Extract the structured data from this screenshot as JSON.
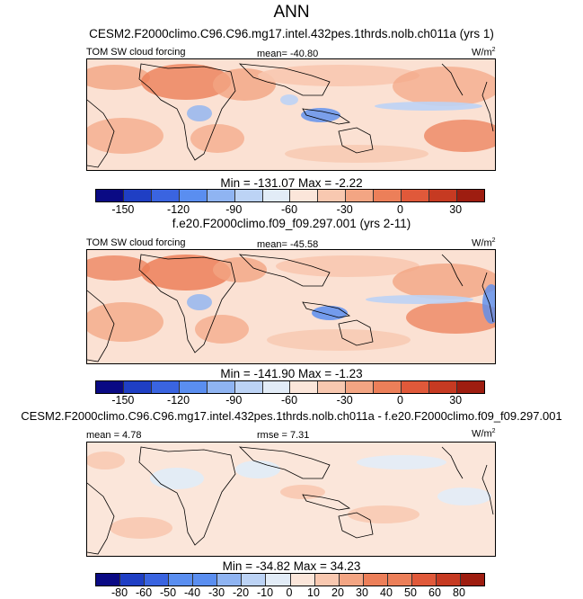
{
  "chart_data": {
    "type": "heatmap",
    "title": "ANN",
    "panels": [
      {
        "subtitle": "CESM2.F2000climo.C96.C96.mg17.intel.432pes.1thrds.nolb.ch011a (yrs 1)",
        "left_label": "TOM SW cloud forcing",
        "center_label": "mean= -40.80",
        "units": "W/m",
        "units_exp": "2",
        "stats": "Min = -131.07 Max =  -2.22",
        "colorbar_ticks": [
          "-150",
          "-120",
          "-90",
          "-60",
          "-30",
          "0",
          "30"
        ],
        "colorbar_range": [
          -165,
          45
        ]
      },
      {
        "subtitle": "f.e20.F2000climo.f09_f09.297.001 (yrs 2-11)",
        "left_label": "TOM SW cloud forcing",
        "center_label": "mean= -45.58",
        "units": "W/m",
        "units_exp": "2",
        "stats": "Min = -141.90 Max =  -1.23",
        "colorbar_ticks": [
          "-150",
          "-120",
          "-90",
          "-60",
          "-30",
          "0",
          "30"
        ],
        "colorbar_range": [
          -165,
          45
        ]
      },
      {
        "subtitle": "CESM2.F2000climo.C96.C96.mg17.intel.432pes.1thrds.nolb.ch011a - f.e20.F2000climo.f09_f09.297.001",
        "left_label": "mean =  4.78",
        "center_label": "rmse =  7.31",
        "units": "W/m",
        "units_exp": "2",
        "stats": "Min = -34.82 Max =  34.23",
        "colorbar_ticks": [
          "-80",
          "-60",
          "-50",
          "-40",
          "-30",
          "-20",
          "-10",
          "0",
          "10",
          "20",
          "30",
          "40",
          "50",
          "60",
          "80"
        ],
        "colorbar_range": [
          -90,
          90
        ]
      }
    ],
    "colorbar_colors": [
      "#0a0a84",
      "#1f3fc4",
      "#3a64e0",
      "#5a8ef0",
      "#8fb4f2",
      "#bcd3f5",
      "#e2ecf7",
      "#fbe6da",
      "#f8c8b0",
      "#f3a583",
      "#ec7f59",
      "#e0593a",
      "#c63a22",
      "#9e1d10"
    ]
  }
}
